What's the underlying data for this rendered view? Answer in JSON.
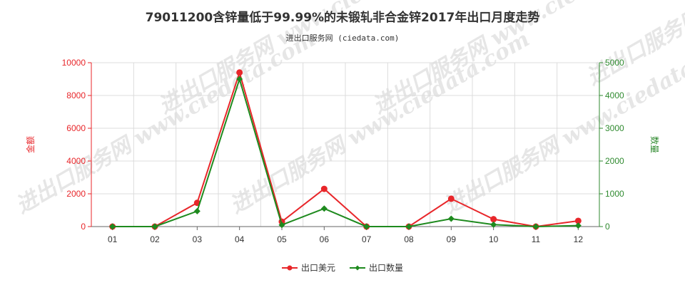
{
  "chart_data": {
    "type": "line",
    "title": "79011200含锌量低于99.99%的未锻轧非合金锌2017年出口月度走势",
    "subtitle": "进出口服务网 (ciedata.com)",
    "watermark": "进出口服务网 www.ciedata.com",
    "categories": [
      "01",
      "02",
      "03",
      "04",
      "05",
      "06",
      "07",
      "08",
      "09",
      "10",
      "11",
      "12"
    ],
    "left_axis": {
      "label": "金额",
      "min": 0,
      "max": 10000,
      "ticks": [
        0,
        2000,
        4000,
        6000,
        8000,
        10000
      ],
      "color": "#e8262a"
    },
    "right_axis": {
      "label": "数量",
      "min": 0,
      "max": 5000,
      "ticks": [
        0,
        1000,
        2000,
        3000,
        4000,
        5000
      ],
      "color": "#2f8a2f"
    },
    "series": [
      {
        "name": "出口美元",
        "axis": "left",
        "color": "#e8262a",
        "values": [
          0,
          0,
          1450,
          9400,
          300,
          2300,
          0,
          0,
          1700,
          450,
          0,
          350
        ]
      },
      {
        "name": "出口数量",
        "axis": "right",
        "color": "#1e8a1e",
        "values": [
          0,
          0,
          470,
          4500,
          50,
          550,
          0,
          0,
          240,
          60,
          0,
          30
        ]
      }
    ],
    "grid": true,
    "legend_position": "bottom-center"
  }
}
